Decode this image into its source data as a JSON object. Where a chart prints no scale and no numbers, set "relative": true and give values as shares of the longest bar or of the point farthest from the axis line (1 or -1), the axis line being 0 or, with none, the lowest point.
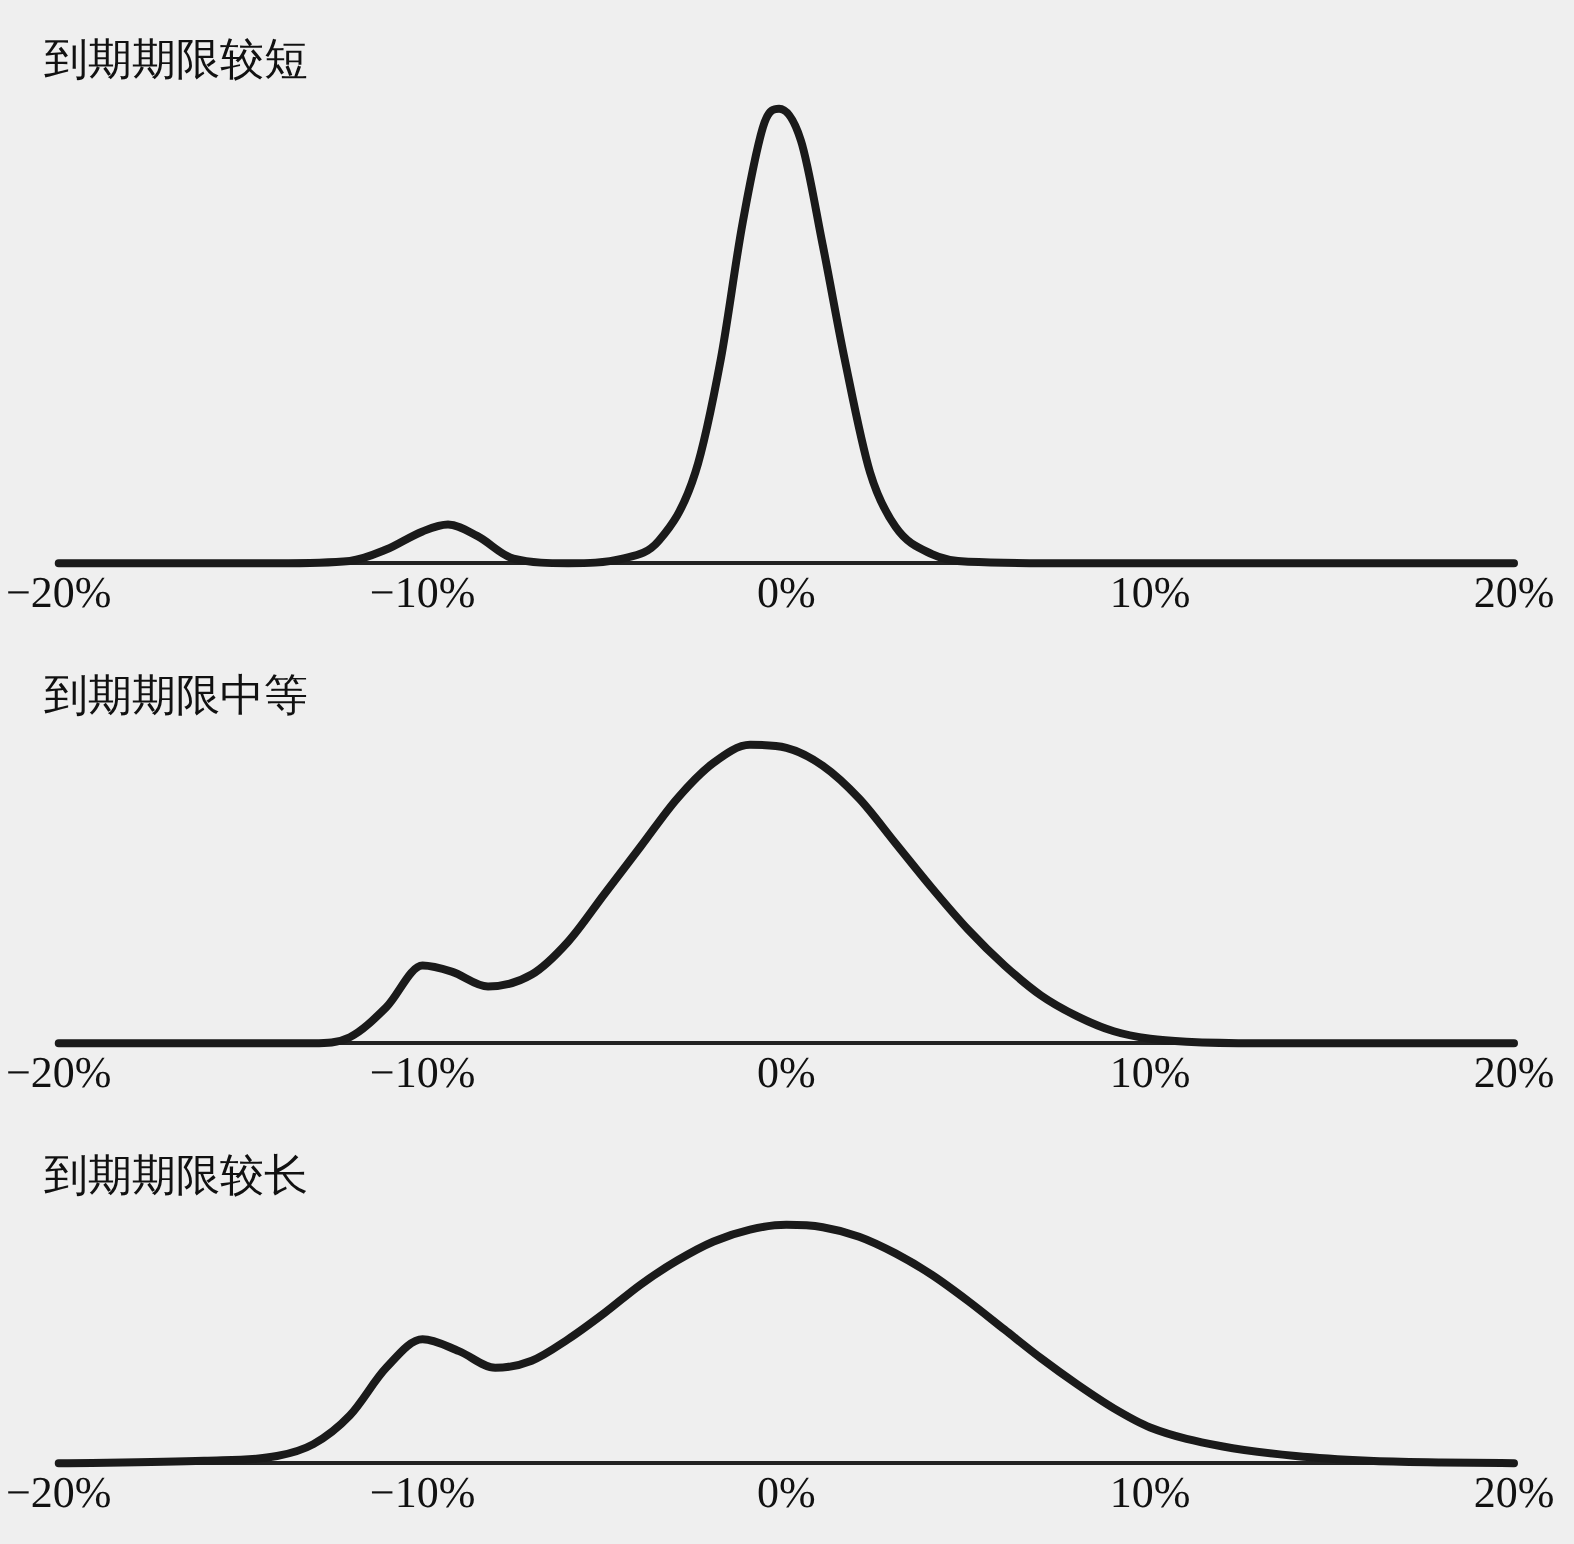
{
  "chart_data": [
    {
      "type": "line",
      "title": "到期期限较短",
      "relative": true,
      "x": [
        -20,
        -14,
        -12,
        -11,
        -10,
        -9.3,
        -8.5,
        -7.5,
        -6,
        -4.5,
        -3.5,
        -2.5,
        -1.8,
        -1.2,
        -0.6,
        -0.2,
        0.4,
        1,
        1.6,
        2.3,
        3,
        4,
        5,
        8,
        20
      ],
      "series": [
        {
          "color": "#1a1a1a",
          "values": [
            0,
            0,
            0.005,
            0.03,
            0.07,
            0.085,
            0.06,
            0.01,
            0,
            0.01,
            0.05,
            0.2,
            0.45,
            0.75,
            0.97,
            1,
            0.93,
            0.7,
            0.45,
            0.2,
            0.08,
            0.02,
            0.003,
            0,
            0
          ]
        }
      ],
      "xlim": [
        -20,
        20
      ],
      "xticks": [
        {
          "value": -20,
          "label": "−20%"
        },
        {
          "value": -10,
          "label": "−10%"
        },
        {
          "value": 0,
          "label": "0%"
        },
        {
          "value": 10,
          "label": "10%"
        },
        {
          "value": 20,
          "label": "20%"
        }
      ],
      "grid": false,
      "legend": false,
      "marker": "none",
      "line_style": "solid"
    },
    {
      "type": "line",
      "title": "到期期限中等",
      "relative": true,
      "x": [
        -20,
        -13,
        -12,
        -11,
        -10,
        -9.2,
        -8.2,
        -7,
        -6,
        -5,
        -4,
        -3,
        -2,
        -1,
        0,
        1,
        2,
        3,
        4,
        5,
        6,
        7,
        8,
        9,
        10,
        11,
        13,
        20
      ],
      "series": [
        {
          "color": "#1a1a1a",
          "values": [
            0,
            0,
            0.02,
            0.12,
            0.26,
            0.24,
            0.19,
            0.23,
            0.34,
            0.5,
            0.66,
            0.82,
            0.94,
            1,
            0.99,
            0.93,
            0.82,
            0.67,
            0.52,
            0.38,
            0.26,
            0.16,
            0.09,
            0.04,
            0.015,
            0.005,
            0,
            0
          ]
        }
      ],
      "xlim": [
        -20,
        20
      ],
      "xticks": [
        {
          "value": -20,
          "label": "−20%"
        },
        {
          "value": -10,
          "label": "−10%"
        },
        {
          "value": 0,
          "label": "0%"
        },
        {
          "value": 10,
          "label": "10%"
        },
        {
          "value": 20,
          "label": "20%"
        }
      ],
      "grid": false,
      "legend": false,
      "marker": "none",
      "line_style": "solid"
    },
    {
      "type": "line",
      "title": "到期期限较长",
      "relative": true,
      "x": [
        -20,
        -16,
        -14,
        -13,
        -12,
        -11,
        -10,
        -9,
        -8,
        -7,
        -6,
        -5,
        -4,
        -3,
        -2,
        -1,
        0,
        1,
        2,
        3,
        4,
        5,
        6,
        7,
        8,
        9,
        10,
        12,
        14,
        16,
        18,
        20
      ],
      "series": [
        {
          "color": "#1a1a1a",
          "values": [
            0,
            0.01,
            0.03,
            0.08,
            0.2,
            0.4,
            0.52,
            0.47,
            0.4,
            0.43,
            0.52,
            0.63,
            0.75,
            0.85,
            0.93,
            0.98,
            1,
            0.99,
            0.95,
            0.88,
            0.79,
            0.68,
            0.56,
            0.44,
            0.33,
            0.23,
            0.15,
            0.07,
            0.03,
            0.01,
            0.003,
            0
          ]
        }
      ],
      "xlim": [
        -20,
        20
      ],
      "xticks": [
        {
          "value": -20,
          "label": "−20%"
        },
        {
          "value": -10,
          "label": "−10%"
        },
        {
          "value": 0,
          "label": "0%"
        },
        {
          "value": 10,
          "label": "10%"
        },
        {
          "value": 20,
          "label": "20%"
        }
      ],
      "grid": false,
      "legend": false,
      "marker": "none",
      "line_style": "solid"
    }
  ]
}
